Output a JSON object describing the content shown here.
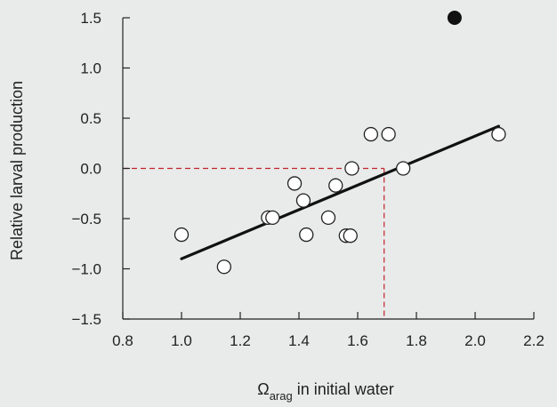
{
  "chart_data": {
    "type": "scatter",
    "title": "",
    "xlabel": {
      "symbol": "Ω",
      "subscript": "arag",
      "rest": " in initial water"
    },
    "ylabel": "Relative larval production",
    "xlim": [
      0.8,
      2.2
    ],
    "ylim": [
      -1.5,
      1.5
    ],
    "xticks": [
      "0.8",
      "1.0",
      "1.2",
      "1.4",
      "1.6",
      "1.8",
      "2.0",
      "2.2"
    ],
    "yticks": [
      "1.5",
      "1.0",
      "0.5",
      "0.0",
      "−0.5",
      "−1.0",
      "−1.5"
    ],
    "grid": false,
    "open_points": {
      "x": [
        1.0,
        1.145,
        1.295,
        1.31,
        1.385,
        1.415,
        1.425,
        1.5,
        1.525,
        1.56,
        1.575,
        1.58,
        1.645,
        1.705,
        1.755,
        2.08
      ],
      "y": [
        -0.66,
        -0.98,
        -0.49,
        -0.49,
        -0.15,
        -0.32,
        -0.66,
        -0.49,
        -0.17,
        -0.67,
        -0.67,
        0.0,
        0.34,
        0.34,
        0.0,
        0.34
      ],
      "fill": "#ffffff",
      "stroke": "#222222"
    },
    "filled_points": {
      "x": [
        1.93
      ],
      "y": [
        1.5
      ],
      "fill": "#111111"
    },
    "fit_line": {
      "x": [
        1.0,
        2.08
      ],
      "y": [
        -0.9,
        0.42
      ],
      "color": "#111111"
    },
    "reference_lines": {
      "y_value": 0.0,
      "x_value": 1.69,
      "color": "#c0242c"
    }
  }
}
